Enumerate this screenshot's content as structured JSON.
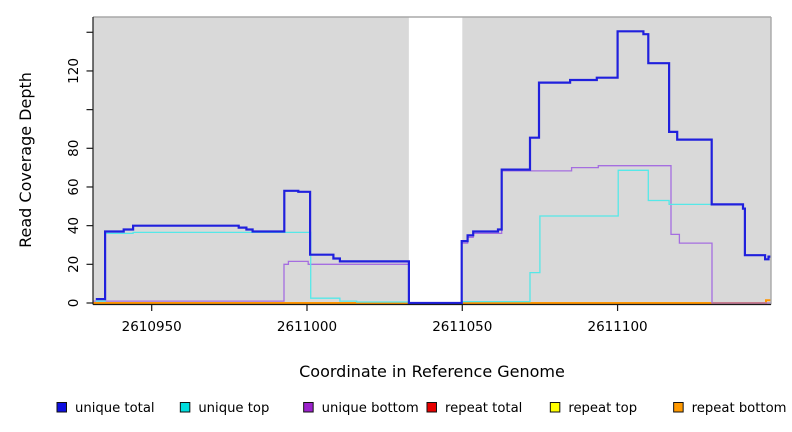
{
  "chart_data": {
    "type": "line",
    "subtype": "step-coverage",
    "title": "",
    "xlabel": "Coordinate in Reference Genome",
    "ylabel": "Read Coverage Depth",
    "xlim": [
      2610931.1,
      2611149.4
    ],
    "ylim": [
      0,
      147.9
    ],
    "grid": false,
    "legend_position": "bottom",
    "plot_bg_color": "#ffffff",
    "region_color": "#d9d9d9",
    "gap_region": [
      2611032.8,
      2611050.0
    ],
    "background_regions": [
      {
        "x0": 2610931.1,
        "x1": 2611032.8
      },
      {
        "x0": 2611050.0,
        "x1": 2611149.4
      }
    ],
    "x_ticks": [
      {
        "value": 2610950,
        "label": "2610950"
      },
      {
        "value": 2611000,
        "label": "2611000"
      },
      {
        "value": 2611050,
        "label": "2611050"
      },
      {
        "value": 2611100,
        "label": "2611100"
      }
    ],
    "y_ticks": [
      {
        "value": 0,
        "label": "0"
      },
      {
        "value": 20,
        "label": "20"
      },
      {
        "value": 40,
        "label": "40"
      },
      {
        "value": 60,
        "label": "60"
      },
      {
        "value": 80,
        "label": "80"
      },
      {
        "value": 100,
        "label": ""
      },
      {
        "value": 120,
        "label": "120"
      },
      {
        "value": 140,
        "label": ""
      }
    ],
    "series": [
      {
        "name": "repeat-top",
        "label": "repeat top",
        "color": "#f2f200",
        "legend_fill": "#ffff00",
        "width": 1.3,
        "points": [
          [
            2610931.1,
            0
          ],
          [
            2611149.4,
            0
          ]
        ]
      },
      {
        "name": "repeat-total",
        "label": "repeat total",
        "color": "#e00000",
        "legend_fill": "#e60000",
        "width": 1.3,
        "points": [
          [
            2610931.1,
            0
          ],
          [
            2611147.8,
            1.4
          ],
          [
            2611149.4,
            1.4
          ]
        ]
      },
      {
        "name": "repeat-bottom",
        "label": "repeat bottom",
        "color": "#ff9500",
        "legend_fill": "#ff9900",
        "width": 2.0,
        "points": [
          [
            2610931.1,
            0
          ],
          [
            2611147.8,
            1.4
          ],
          [
            2611149.4,
            1.4
          ]
        ]
      },
      {
        "name": "unique-bottom",
        "label": "unique bottom",
        "color": "#a56ee0",
        "legend_fill": "#9c22cc",
        "width": 1.3,
        "points": [
          [
            2610931.1,
            1
          ],
          [
            2610992.6,
            20
          ],
          [
            2610994,
            21.5
          ],
          [
            2611000.4,
            20
          ],
          [
            2611032.8,
            0
          ],
          [
            2611049.8,
            31
          ],
          [
            2611051.7,
            34
          ],
          [
            2611053.5,
            36
          ],
          [
            2611062.7,
            68.3
          ],
          [
            2611085.2,
            70
          ],
          [
            2611093.8,
            71
          ],
          [
            2611117.2,
            35.5
          ],
          [
            2611119.9,
            31
          ],
          [
            2611130.4,
            0
          ],
          [
            2611149.4,
            0
          ]
        ]
      },
      {
        "name": "unique-top",
        "label": "unique top",
        "color": "#55e8e8",
        "legend_fill": "#00dddd",
        "width": 1.3,
        "points": [
          [
            2610932,
            1
          ],
          [
            2610935,
            36
          ],
          [
            2610944,
            36.5
          ],
          [
            2611001.2,
            2.5
          ],
          [
            2611010.6,
            1
          ],
          [
            2611016,
            0.5
          ],
          [
            2611032.8,
            0
          ],
          [
            2611050,
            0.7
          ],
          [
            2611071.8,
            15.7
          ],
          [
            2611075,
            45
          ],
          [
            2611100.2,
            68.6
          ],
          [
            2611109.9,
            53
          ],
          [
            2611116.6,
            51
          ],
          [
            2611140.4,
            48.8
          ],
          [
            2611141,
            24.7
          ],
          [
            2611147.5,
            22.6
          ],
          [
            2611148.6,
            24
          ],
          [
            2611149.4,
            24
          ]
        ]
      },
      {
        "name": "unique-total",
        "label": "unique total",
        "color": "#2020dd",
        "legend_fill": "#0f0fe0",
        "width": 2.2,
        "points": [
          [
            2610932,
            2
          ],
          [
            2610935,
            37
          ],
          [
            2610941,
            38
          ],
          [
            2610944,
            40
          ],
          [
            2610978,
            39
          ],
          [
            2610980.5,
            38
          ],
          [
            2610982.5,
            37
          ],
          [
            2610992.7,
            58
          ],
          [
            2610997.2,
            57.5
          ],
          [
            2611001,
            25
          ],
          [
            2611008.5,
            23
          ],
          [
            2611010.6,
            21.5
          ],
          [
            2611032.8,
            0
          ],
          [
            2611049.8,
            32
          ],
          [
            2611051.7,
            35
          ],
          [
            2611053.5,
            37
          ],
          [
            2611061.5,
            38
          ],
          [
            2611062.7,
            69
          ],
          [
            2611071.8,
            85.5
          ],
          [
            2611074.7,
            114
          ],
          [
            2611084.7,
            115.3
          ],
          [
            2611093.3,
            116.5
          ],
          [
            2611100,
            140.5
          ],
          [
            2611108.3,
            139
          ],
          [
            2611109.9,
            124
          ],
          [
            2611116.6,
            88.5
          ],
          [
            2611119.2,
            84.5
          ],
          [
            2611130.3,
            51
          ],
          [
            2611140.4,
            48.8
          ],
          [
            2611141,
            24.7
          ],
          [
            2611147.5,
            22.6
          ],
          [
            2611148.6,
            24
          ],
          [
            2611149.4,
            24
          ]
        ]
      }
    ],
    "legend": [
      {
        "label": "unique total",
        "fill": "#0f0fe0"
      },
      {
        "label": "unique top",
        "fill": "#00dddd"
      },
      {
        "label": "unique bottom",
        "fill": "#9c22cc"
      },
      {
        "label": "repeat total",
        "fill": "#e60000"
      },
      {
        "label": "repeat top",
        "fill": "#ffff00"
      },
      {
        "label": "repeat bottom",
        "fill": "#ff9900"
      }
    ],
    "axis_color": "#1a1a1a",
    "box_color": "#a8a8a8"
  }
}
